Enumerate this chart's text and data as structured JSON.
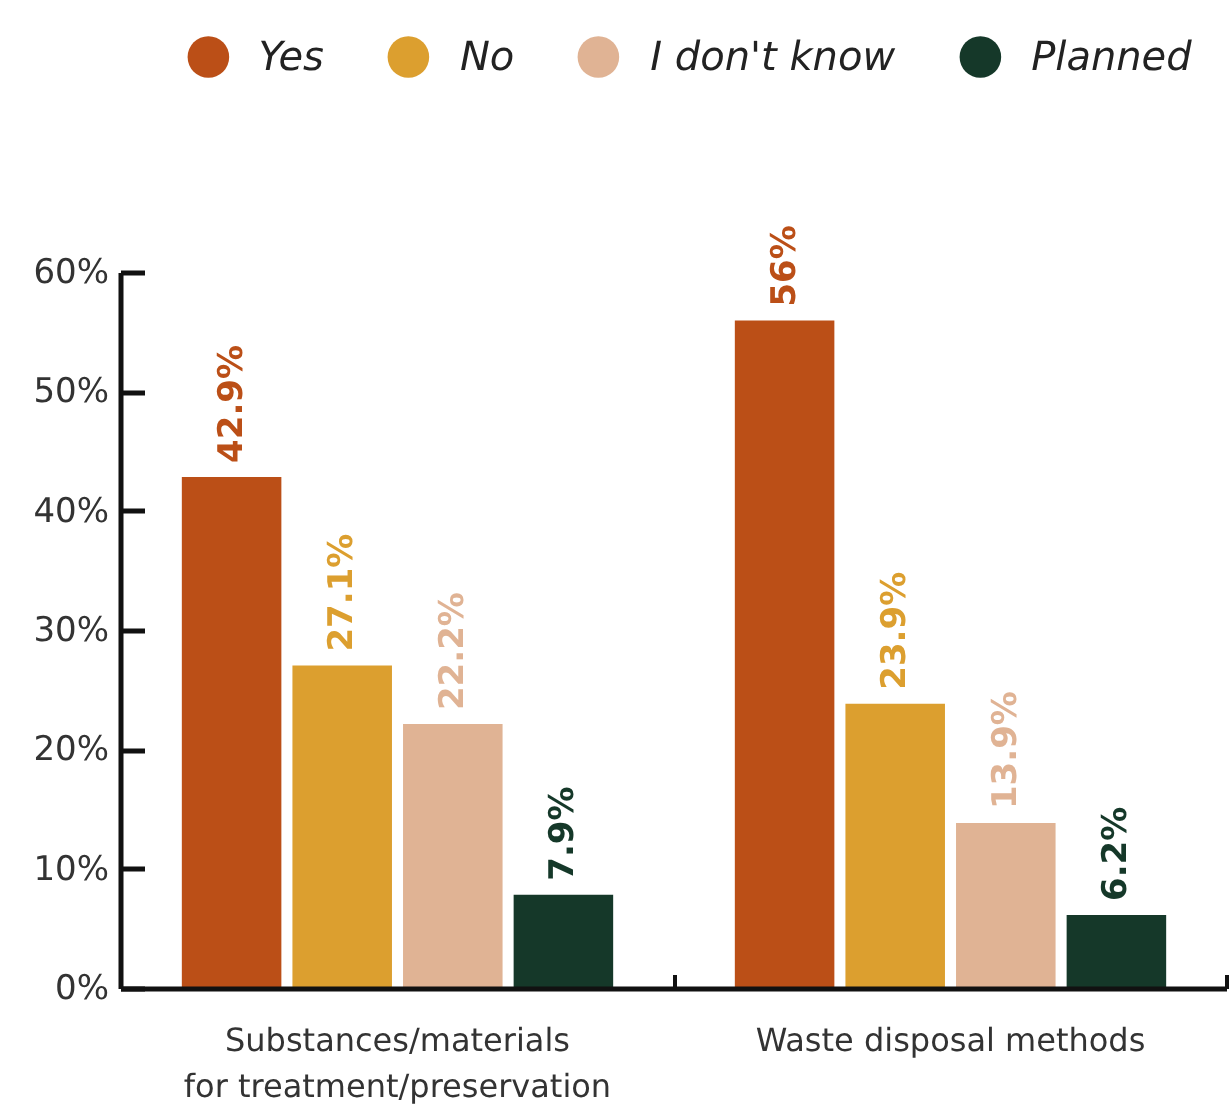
{
  "chart_data": {
    "type": "bar",
    "categories": [
      "Substances/materials\nfor treatment/preservation",
      "Waste disposal methods"
    ],
    "series": [
      {
        "name": "Yes",
        "color": "#bb4f17",
        "values": [
          42.9,
          56
        ],
        "value_labels": [
          "42.9%",
          "56%"
        ]
      },
      {
        "name": "No",
        "color": "#dc9f2f",
        "values": [
          27.1,
          23.9
        ],
        "value_labels": [
          "27.1%",
          "23.9%"
        ]
      },
      {
        "name": "I don't know",
        "color": "#e0b394",
        "values": [
          22.2,
          13.9
        ],
        "value_labels": [
          "22.2%",
          "13.9%"
        ]
      },
      {
        "name": "Planned",
        "color": "#153829",
        "values": [
          7.9,
          6.2
        ],
        "value_labels": [
          "7.9%",
          "6.2%"
        ]
      }
    ],
    "ylim": [
      0,
      60
    ],
    "yticks": [
      {
        "value": 0,
        "label": "0%"
      },
      {
        "value": 10,
        "label": "10%"
      },
      {
        "value": 20,
        "label": "20%"
      },
      {
        "value": 30,
        "label": "30%"
      },
      {
        "value": 40,
        "label": "40%"
      },
      {
        "value": 50,
        "label": "50%"
      },
      {
        "value": 60,
        "label": "60%"
      }
    ],
    "grid": false,
    "legend": "top"
  }
}
